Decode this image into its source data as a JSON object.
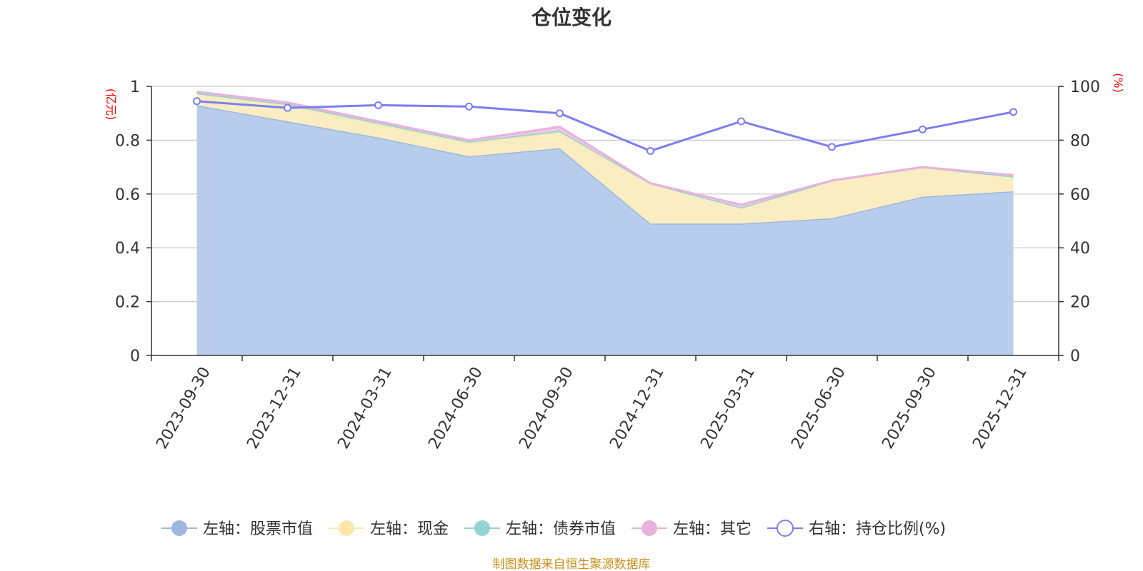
{
  "chart_data": {
    "type": "area",
    "title": "仓位变化",
    "categories": [
      "2023-09-30",
      "2023-12-31",
      "2024-03-31",
      "2024-06-30",
      "2024-09-30",
      "2024-12-31",
      "2025-03-31",
      "2025-06-30",
      "2025-09-30",
      "2025-12-31"
    ],
    "left_axis": {
      "unit": "(亿元)",
      "ylim": [
        0,
        1
      ],
      "ticks": [
        "0",
        "0.2",
        "0.4",
        "0.6",
        "0.8",
        "1"
      ]
    },
    "right_axis": {
      "unit": "(%)",
      "ylim": [
        0,
        100
      ],
      "ticks": [
        "0",
        "20",
        "40",
        "60",
        "80",
        "100"
      ]
    },
    "series": [
      {
        "name": "左轴：股票市值",
        "axis": "left",
        "kind": "stacked-area",
        "color": "#9db7e0",
        "fill": "#b8cdeb",
        "values": [
          0.93,
          0.87,
          0.81,
          0.74,
          0.77,
          0.49,
          0.49,
          0.51,
          0.59,
          0.61
        ]
      },
      {
        "name": "左轴：现金",
        "axis": "left",
        "kind": "stacked-area",
        "color": "#fae8a8",
        "fill": "#faedc2",
        "values": [
          0.04,
          0.06,
          0.05,
          0.05,
          0.06,
          0.15,
          0.06,
          0.14,
          0.11,
          0.055
        ]
      },
      {
        "name": "左轴：债券市值",
        "axis": "left",
        "kind": "stacked-area",
        "color": "#93d3d3",
        "fill": "#b3e3e3",
        "values": [
          0.005,
          0.005,
          0.005,
          0.005,
          0.005,
          0.0,
          0.0,
          0.0,
          0.0,
          0.0
        ]
      },
      {
        "name": "左轴：其它",
        "axis": "left",
        "kind": "stacked-area",
        "color": "#e8b2dc",
        "fill": "#f0c8e8",
        "values": [
          0.005,
          0.005,
          0.005,
          0.005,
          0.015,
          0.0,
          0.01,
          0.0,
          0.0,
          0.005
        ]
      },
      {
        "name": "右轴：持仓比例(%)",
        "axis": "right",
        "kind": "line",
        "color": "#7b7ff0",
        "values": [
          94.5,
          92,
          93,
          92.5,
          90,
          76,
          87,
          77.5,
          84,
          90.5
        ]
      }
    ],
    "grid": true,
    "legend_position": "bottom-center"
  },
  "footer": {
    "source": "制图数据来自恒生聚源数据库"
  }
}
